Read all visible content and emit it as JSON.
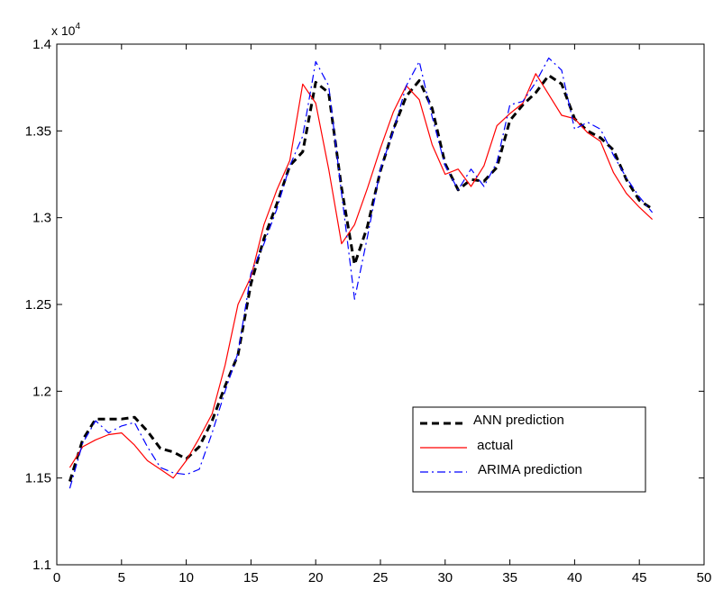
{
  "chart_data": {
    "type": "line",
    "title": "",
    "xlabel": "",
    "ylabel": "",
    "y_exponent_label": "x 10",
    "y_exponent_power": "4",
    "xlim": [
      0,
      50
    ],
    "ylim": [
      1.1,
      1.4
    ],
    "xticks": [
      "0",
      "5",
      "10",
      "15",
      "20",
      "25",
      "30",
      "35",
      "40",
      "45",
      "50"
    ],
    "yticks": [
      "1.1",
      "1.15",
      "1.2",
      "1.25",
      "1.3",
      "1.35",
      "1.4"
    ],
    "grid": false,
    "legend_position": "lower-right",
    "x": [
      1,
      2,
      3,
      4,
      5,
      6,
      7,
      8,
      9,
      10,
      11,
      12,
      13,
      14,
      15,
      16,
      17,
      18,
      19,
      20,
      21,
      22,
      23,
      24,
      25,
      26,
      27,
      28,
      29,
      30,
      31,
      32,
      33,
      34,
      35,
      36,
      37,
      38,
      39,
      40,
      41,
      42,
      43,
      44,
      45,
      46
    ],
    "series": [
      {
        "name": "ANN prediction",
        "color": "#000000",
        "style": "dashed",
        "values": [
          1.148,
          1.172,
          1.184,
          1.184,
          1.184,
          1.185,
          1.177,
          1.167,
          1.165,
          1.161,
          1.168,
          1.183,
          1.203,
          1.221,
          1.262,
          1.288,
          1.308,
          1.33,
          1.338,
          1.378,
          1.372,
          1.317,
          1.273,
          1.295,
          1.327,
          1.351,
          1.37,
          1.379,
          1.363,
          1.331,
          1.316,
          1.322,
          1.321,
          1.329,
          1.356,
          1.365,
          1.372,
          1.382,
          1.377,
          1.357,
          1.35,
          1.346,
          1.339,
          1.322,
          1.31,
          1.305
        ]
      },
      {
        "name": " actual",
        "color": "#ff0000",
        "style": "solid",
        "values": [
          1.156,
          1.168,
          1.172,
          1.175,
          1.176,
          1.169,
          1.16,
          1.155,
          1.15,
          1.16,
          1.173,
          1.187,
          1.215,
          1.25,
          1.266,
          1.296,
          1.316,
          1.333,
          1.377,
          1.366,
          1.328,
          1.285,
          1.296,
          1.317,
          1.34,
          1.361,
          1.376,
          1.368,
          1.342,
          1.325,
          1.328,
          1.318,
          1.33,
          1.353,
          1.36,
          1.366,
          1.383,
          1.371,
          1.359,
          1.357,
          1.349,
          1.344,
          1.326,
          1.314,
          1.306,
          1.299
        ]
      },
      {
        "name": "ARIMA prediction",
        "color": "#0000ff",
        "style": "dashdot",
        "values": [
          1.144,
          1.17,
          1.183,
          1.176,
          1.18,
          1.182,
          1.168,
          1.156,
          1.153,
          1.152,
          1.155,
          1.176,
          1.2,
          1.222,
          1.268,
          1.285,
          1.305,
          1.33,
          1.347,
          1.39,
          1.376,
          1.314,
          1.253,
          1.289,
          1.328,
          1.35,
          1.376,
          1.39,
          1.358,
          1.33,
          1.316,
          1.328,
          1.318,
          1.332,
          1.365,
          1.367,
          1.378,
          1.392,
          1.385,
          1.351,
          1.355,
          1.351,
          1.336,
          1.323,
          1.312,
          1.303
        ]
      }
    ]
  }
}
